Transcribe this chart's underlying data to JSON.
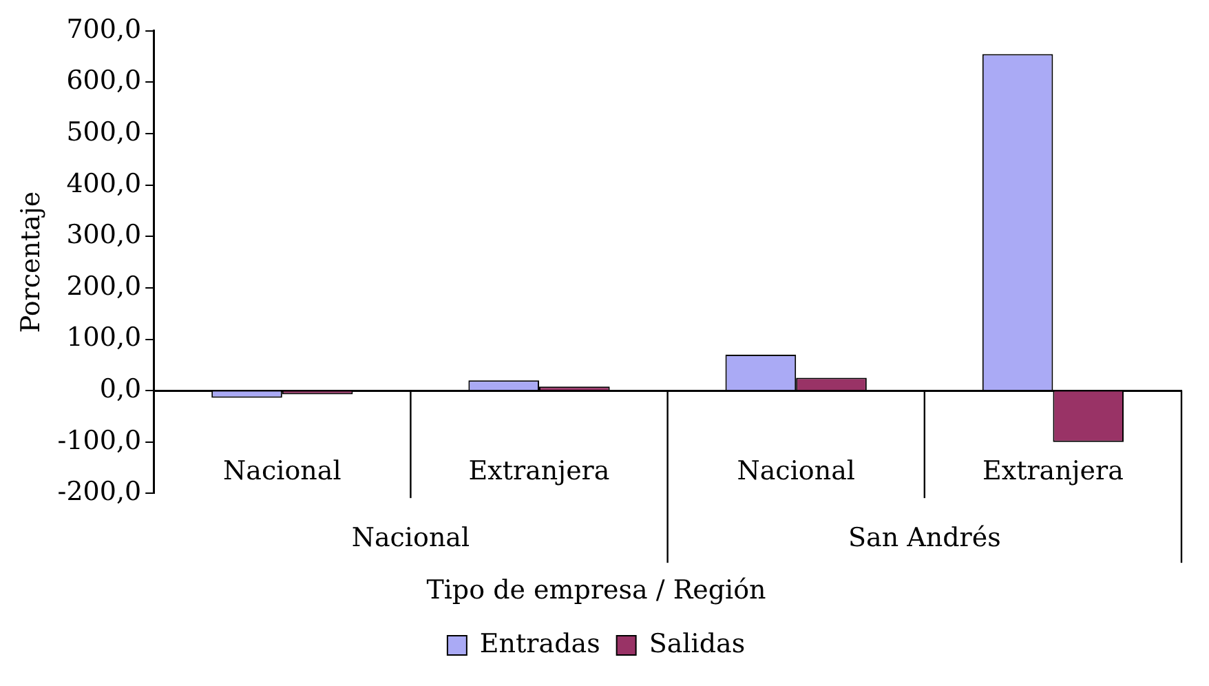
{
  "chart_data": {
    "type": "bar",
    "xlabel": "Tipo de empresa / Región",
    "ylabel": "Porcentaje",
    "categories": [
      "Nacional",
      "Extranjera",
      "Nacional",
      "Extranjera"
    ],
    "series": [
      {
        "name": "Entradas",
        "color": "#aaaaf5",
        "values": [
          -14,
          20,
          70,
          655
        ]
      },
      {
        "name": "Salidas",
        "color": "#993366",
        "values": [
          -7,
          8,
          25,
          -100
        ]
      }
    ],
    "annotations": [
      "Nacional",
      "San Andrés"
    ],
    "ylim": [
      -200,
      700
    ],
    "yticks": [
      {
        "value": -200,
        "label": "-200,0"
      },
      {
        "value": -100,
        "label": "-100,0"
      },
      {
        "value": 0,
        "label": "0,0"
      },
      {
        "value": 100,
        "label": "100,0"
      },
      {
        "value": 200,
        "label": "200,0"
      },
      {
        "value": 300,
        "label": "300,0"
      },
      {
        "value": 400,
        "label": "400,0"
      },
      {
        "value": 500,
        "label": "500,0"
      },
      {
        "value": 600,
        "label": "600,0"
      },
      {
        "value": 700,
        "label": "700,0"
      }
    ],
    "grid": false,
    "legend": "bottom"
  }
}
